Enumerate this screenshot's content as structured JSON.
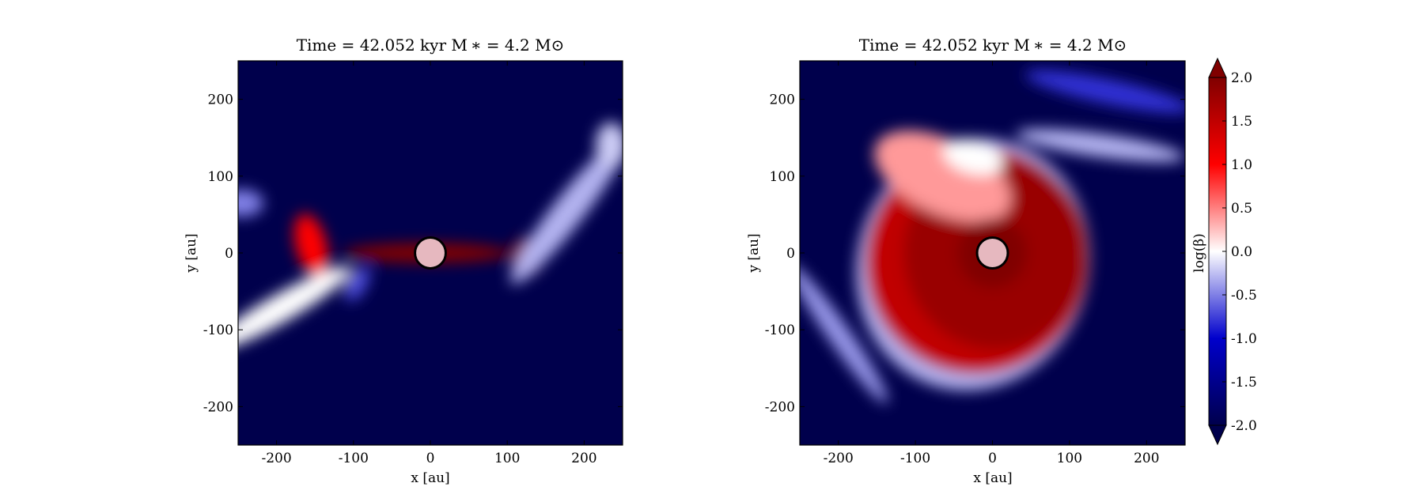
{
  "chart_data": [
    {
      "type": "heatmap",
      "title": "Time = 42.052 kyr    M ∗ = 4.2 M⊙",
      "xlabel": "x [au]",
      "ylabel": "y [au]",
      "xlim": [
        -250,
        250
      ],
      "ylim": [
        -250,
        250
      ],
      "xticks": [
        -200,
        -100,
        0,
        100,
        200
      ],
      "yticks": [
        -200,
        -100,
        0,
        100,
        200
      ],
      "xtick_labels": [
        "-200",
        "-100",
        "0",
        "100",
        "200"
      ],
      "ytick_labels": [
        "-200",
        "-100",
        "0",
        "100",
        "200"
      ],
      "background_value": -2.0,
      "sink_particle": {
        "x": 0,
        "y": 0,
        "radius": 20
      },
      "features": [
        {
          "kind": "disk",
          "cx": -5,
          "cy": 0,
          "rx": 108,
          "ry": 13,
          "rot": 0,
          "value": 2.0
        },
        {
          "kind": "disk",
          "cx": 125,
          "cy": -5,
          "rx": 22,
          "ry": 25,
          "rot": 0,
          "value": 2.0
        },
        {
          "kind": "disk",
          "cx": -155,
          "cy": 10,
          "rx": 20,
          "ry": 42,
          "rot": 15,
          "value": 1.0
        },
        {
          "kind": "disk",
          "cx": -245,
          "cy": 65,
          "rx": 28,
          "ry": 18,
          "rot": 0,
          "value": -0.5
        },
        {
          "kind": "disk",
          "cx": -195,
          "cy": -72,
          "rx": 105,
          "ry": 18,
          "rot": 30,
          "value": 0.0
        },
        {
          "kind": "disk",
          "cx": -95,
          "cy": -40,
          "rx": 25,
          "ry": 12,
          "rot": 60,
          "value": -0.7
        },
        {
          "kind": "disk",
          "cx": 180,
          "cy": 55,
          "rx": 120,
          "ry": 20,
          "rot": 52,
          "value": -0.3
        },
        {
          "kind": "disk",
          "cx": 235,
          "cy": 140,
          "rx": 20,
          "ry": 30,
          "rot": 0,
          "value": -0.2
        }
      ]
    },
    {
      "type": "heatmap",
      "title": "Time = 42.052 kyr    M ∗ = 4.2 M⊙",
      "xlabel": "x [au]",
      "ylabel": "y [au]",
      "xlim": [
        -250,
        250
      ],
      "ylim": [
        -250,
        250
      ],
      "xticks": [
        -200,
        -100,
        0,
        100,
        200
      ],
      "yticks": [
        -200,
        -100,
        0,
        100,
        200
      ],
      "xtick_labels": [
        "-200",
        "-100",
        "0",
        "100",
        "200"
      ],
      "ytick_labels": [
        "-200",
        "-100",
        "0",
        "100",
        "200"
      ],
      "background_value": -2.0,
      "sink_particle": {
        "x": 0,
        "y": 0,
        "radius": 20
      },
      "features": [
        {
          "kind": "disk",
          "cx": -25,
          "cy": -15,
          "rx": 150,
          "ry": 165,
          "rot": -20,
          "value": -0.3
        },
        {
          "kind": "disk",
          "cx": -20,
          "cy": -10,
          "rx": 145,
          "ry": 148,
          "rot": -20,
          "value": 1.5
        },
        {
          "kind": "disk",
          "cx": 5,
          "cy": 0,
          "rx": 120,
          "ry": 125,
          "rot": 0,
          "value": 1.8
        },
        {
          "kind": "disk",
          "cx": -65,
          "cy": 100,
          "rx": 95,
          "ry": 48,
          "rot": -25,
          "value": 0.4
        },
        {
          "kind": "disk",
          "cx": -25,
          "cy": 125,
          "rx": 40,
          "ry": 22,
          "rot": -15,
          "value": 0.0
        },
        {
          "kind": "disk",
          "cx": 0,
          "cy": 0,
          "rx": 45,
          "ry": 45,
          "rot": 0,
          "value": 2.0
        },
        {
          "kind": "disk",
          "cx": -200,
          "cy": -105,
          "rx": 110,
          "ry": 14,
          "rot": -55,
          "value": -0.4
        },
        {
          "kind": "disk",
          "cx": 150,
          "cy": 210,
          "rx": 110,
          "ry": 16,
          "rot": -12,
          "value": -0.8
        },
        {
          "kind": "disk",
          "cx": 140,
          "cy": 140,
          "rx": 110,
          "ry": 15,
          "rot": -8,
          "value": -0.3
        }
      ]
    }
  ],
  "colorbar": {
    "label": "log(β)",
    "min": -2.0,
    "max": 2.0,
    "ticks": [
      -2.0,
      -1.5,
      -1.0,
      -0.5,
      0.0,
      0.5,
      1.0,
      1.5,
      2.0
    ],
    "tick_labels": [
      "-2.0",
      "-1.5",
      "-1.0",
      "-0.5",
      "0.0",
      "0.5",
      "1.0",
      "1.5",
      "2.0"
    ],
    "extend": "both",
    "colors": [
      "#00004c",
      "#0000cc",
      "#ffffff",
      "#ff0000",
      "#800000"
    ]
  }
}
